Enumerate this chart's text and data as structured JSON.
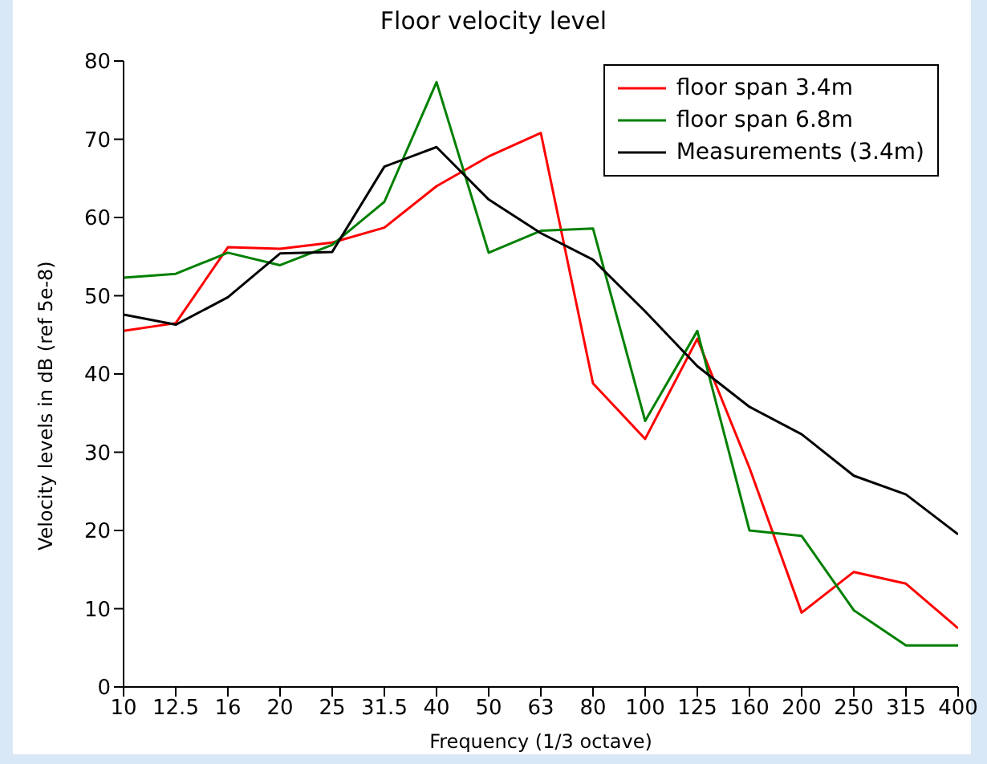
{
  "chart_data": {
    "type": "line",
    "title": "Floor velocity level",
    "xlabel": "Frequency    (1/3 octave)",
    "ylabel": "Velocity levels in dB  (ref 5e-8)",
    "categories": [
      "10",
      "12.5",
      "16",
      "20",
      "25",
      "31.5",
      "40",
      "50",
      "63",
      "80",
      "100",
      "125",
      "160",
      "200",
      "250",
      "315",
      "400"
    ],
    "series": [
      {
        "name": "floor span 3.4m",
        "color": "#ff0000",
        "values": [
          45.5,
          46.5,
          56.2,
          56,
          56.8,
          58.7,
          64,
          67.8,
          70.8,
          38.8,
          31.7,
          44.5,
          28,
          9.5,
          14.7,
          13.2,
          7.5
        ]
      },
      {
        "name": "floor span 6.8m",
        "color": "#008000",
        "values": [
          52.3,
          52.8,
          55.5,
          53.9,
          56.5,
          62,
          77.3,
          55.5,
          58.3,
          58.6,
          34,
          45.5,
          20,
          19.3,
          9.8,
          5.3,
          5.3
        ]
      },
      {
        "name": "Measurements (3.4m)",
        "color": "#000000",
        "values": [
          47.6,
          46.3,
          49.8,
          55.4,
          55.6,
          66.5,
          69,
          62.3,
          58,
          54.6,
          48,
          41,
          35.8,
          32.3,
          27,
          24.6,
          19.5
        ]
      }
    ],
    "ylim": [
      0,
      80
    ],
    "yticks": [
      0,
      10,
      20,
      30,
      40,
      50,
      60,
      70,
      80
    ],
    "grid": false,
    "legend": "top right",
    "marker": "none",
    "line_style": "solid"
  }
}
